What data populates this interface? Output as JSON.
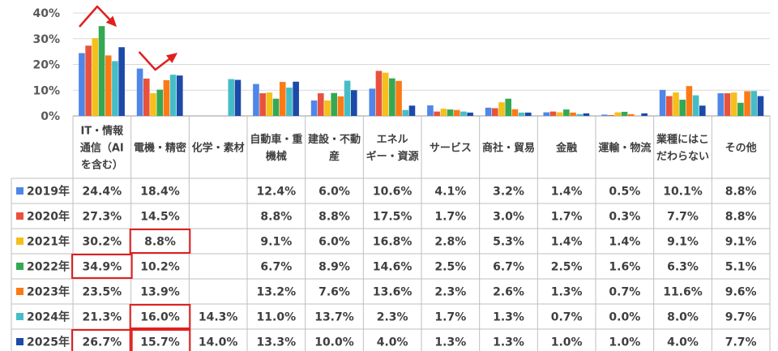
{
  "chart_data": {
    "type": "bar",
    "y_ticks": [
      "40%",
      "30%",
      "20%",
      "10%",
      "0%"
    ],
    "ylim": [
      0,
      40
    ],
    "grid": true,
    "legend": "table-rows",
    "categories": [
      [
        "IT・情報",
        "通信（AI",
        "を含む）"
      ],
      [
        "電機・精密"
      ],
      [
        "化学・素材"
      ],
      [
        "自動車・重",
        "機械"
      ],
      [
        "建設・不動",
        "産"
      ],
      [
        "エネル",
        "ギー・資源"
      ],
      [
        "サービス"
      ],
      [
        "商社・貿易"
      ],
      [
        "金融"
      ],
      [
        "運輸・物流"
      ],
      [
        "業種にはこ",
        "だわらない"
      ],
      [
        "その他"
      ]
    ],
    "series": [
      {
        "name": "2019年",
        "color": "#4f86e8",
        "values": [
          24.4,
          18.4,
          null,
          12.4,
          6.0,
          10.6,
          4.1,
          3.2,
          1.4,
          0.5,
          10.1,
          8.8
        ],
        "labels": [
          "24.4%",
          "18.4%",
          "",
          "12.4%",
          "6.0%",
          "10.6%",
          "4.1%",
          "3.2%",
          "1.4%",
          "0.5%",
          "10.1%",
          "8.8%"
        ]
      },
      {
        "name": "2020年",
        "color": "#e8523c",
        "values": [
          27.3,
          14.5,
          null,
          8.8,
          8.8,
          17.5,
          1.7,
          3.0,
          1.7,
          0.3,
          7.7,
          8.8
        ],
        "labels": [
          "27.3%",
          "14.5%",
          "",
          "8.8%",
          "8.8%",
          "17.5%",
          "1.7%",
          "3.0%",
          "1.7%",
          "0.3%",
          "7.7%",
          "8.8%"
        ]
      },
      {
        "name": "2021年",
        "color": "#f5bf1c",
        "values": [
          30.2,
          8.8,
          null,
          9.1,
          6.0,
          16.8,
          2.8,
          5.3,
          1.4,
          1.4,
          9.1,
          9.1
        ],
        "labels": [
          "30.2%",
          "8.8%",
          "",
          "9.1%",
          "6.0%",
          "16.8%",
          "2.8%",
          "5.3%",
          "1.4%",
          "1.4%",
          "9.1%",
          "9.1%"
        ]
      },
      {
        "name": "2022年",
        "color": "#35a853",
        "values": [
          34.9,
          10.2,
          null,
          6.7,
          8.9,
          14.6,
          2.5,
          6.7,
          2.5,
          1.6,
          6.3,
          5.1
        ],
        "labels": [
          "34.9%",
          "10.2%",
          "",
          "6.7%",
          "8.9%",
          "14.6%",
          "2.5%",
          "6.7%",
          "2.5%",
          "1.6%",
          "6.3%",
          "5.1%"
        ]
      },
      {
        "name": "2023年",
        "color": "#fb7a16",
        "values": [
          23.5,
          13.9,
          null,
          13.2,
          7.6,
          13.6,
          2.3,
          2.6,
          1.3,
          0.7,
          11.6,
          9.6
        ],
        "labels": [
          "23.5%",
          "13.9%",
          "",
          "13.2%",
          "7.6%",
          "13.6%",
          "2.3%",
          "2.6%",
          "1.3%",
          "0.7%",
          "11.6%",
          "9.6%"
        ]
      },
      {
        "name": "2024年",
        "color": "#46bdc6",
        "values": [
          21.3,
          16.0,
          14.3,
          11.0,
          13.7,
          2.3,
          1.7,
          1.3,
          0.7,
          0.0,
          8.0,
          9.7
        ],
        "labels": [
          "21.3%",
          "16.0%",
          "14.3%",
          "11.0%",
          "13.7%",
          "2.3%",
          "1.7%",
          "1.3%",
          "0.7%",
          "0.0%",
          "8.0%",
          "9.7%"
        ]
      },
      {
        "name": "2025年",
        "color": "#1b4aa8",
        "values": [
          26.7,
          15.7,
          14.0,
          13.3,
          10.0,
          4.0,
          1.3,
          1.3,
          1.0,
          1.0,
          4.0,
          7.7
        ],
        "labels": [
          "26.7%",
          "15.7%",
          "14.0%",
          "13.3%",
          "10.0%",
          "4.0%",
          "1.3%",
          "1.3%",
          "1.0%",
          "1.0%",
          "4.0%",
          "7.7%"
        ]
      }
    ],
    "highlighted_cells": [
      {
        "series": 2,
        "category": 1
      },
      {
        "series": 3,
        "category": 0
      },
      {
        "series": 5,
        "category": 1
      },
      {
        "series": 6,
        "category": 1
      },
      {
        "series": 6,
        "category": 0
      }
    ],
    "highlight_color": "#e02020",
    "trend_arrows": [
      {
        "category": 0,
        "direction": "up-then-down"
      },
      {
        "category": 1,
        "direction": "down-then-up"
      }
    ]
  }
}
